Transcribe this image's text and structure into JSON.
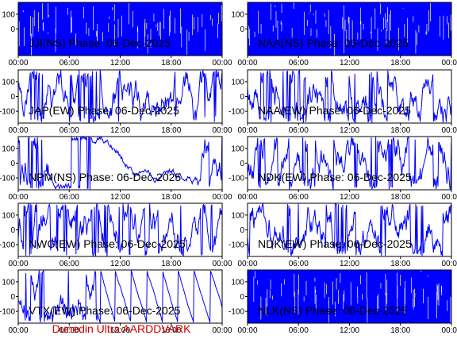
{
  "footer": "Dunedin Ultra AARDDVARK",
  "colors": {
    "trace": "#0000ff",
    "axis": "#000000",
    "footer": "#cc0000"
  },
  "chart_data": [
    {
      "type": "line",
      "title": "JJI(NS) Phase: 06-Dec-2025",
      "xlim": [
        "00:00",
        "24:00"
      ],
      "xticks": [
        "00:00",
        "06:00",
        "12:00",
        "18:00",
        "00:00"
      ],
      "ylim": [
        -180,
        180
      ],
      "yticks": [
        100,
        0
      ],
      "trace_style": "dense-saturated"
    },
    {
      "type": "line",
      "title": "NAA(NS) Phase: 06-Dec-2025",
      "xlim": [
        "00:00",
        "24:00"
      ],
      "xticks": [
        "00:00",
        "06:00",
        "12:00",
        "18:00",
        "00:00"
      ],
      "ylim": [
        -180,
        180
      ],
      "yticks": [
        100,
        0
      ],
      "trace_style": "dense-saturated"
    },
    {
      "type": "line",
      "title": "JAP(EW) Phase: 06-Dec-2025",
      "xlim": [
        "00:00",
        "24:00"
      ],
      "xticks": [
        "00:00",
        "06:00",
        "12:00",
        "18:00",
        "00:00"
      ],
      "ylim": [
        -180,
        180
      ],
      "yticks": [
        100,
        0,
        -100
      ],
      "trace_style": "wrapping-oscillation"
    },
    {
      "type": "line",
      "title": "NAA(EW) Phase: 06-Dec-2025",
      "xlim": [
        "00:00",
        "24:00"
      ],
      "xticks": [
        "00:00",
        "06:00",
        "12:00",
        "18:00",
        "00:00"
      ],
      "ylim": [
        -180,
        180
      ],
      "yticks": [
        100,
        0,
        -100
      ],
      "trace_style": "wrapping-oscillation"
    },
    {
      "type": "line",
      "title": "NPM(NS) Phase: 06-Dec-2025",
      "xlim": [
        "00:00",
        "24:00"
      ],
      "xticks": [
        "00:00",
        "06:00",
        "12:00",
        "18:00",
        "00:00"
      ],
      "ylim": [
        -180,
        180
      ],
      "yticks": [
        100,
        0,
        -100
      ],
      "trace_style": "drifting-sawtooth"
    },
    {
      "type": "line",
      "title": "NDK(EW) Phase: 06-Dec-2025",
      "xlim": [
        "00:00",
        "24:00"
      ],
      "xticks": [
        "00:00",
        "06:00",
        "12:00",
        "18:00",
        "00:00"
      ],
      "ylim": [
        -180,
        180
      ],
      "yticks": [
        100,
        0,
        -100
      ],
      "trace_style": "wrapping-oscillation"
    },
    {
      "type": "line",
      "title": "NWC(EW) Phase: 06-Dec-2025",
      "xlim": [
        "00:00",
        "24:00"
      ],
      "xticks": [
        "00:00",
        "06:00",
        "12:00",
        "18:00",
        "00:00"
      ],
      "ylim": [
        -180,
        180
      ],
      "yticks": [
        100,
        0,
        -100
      ],
      "trace_style": "wrapping-oscillation"
    },
    {
      "type": "line",
      "title": "NDK(EW) Phase: 06-Dec-2025",
      "xlim": [
        "00:00",
        "24:00"
      ],
      "xticks": [
        "00:00",
        "06:00",
        "12:00",
        "18:00",
        "00:00"
      ],
      "ylim": [
        -180,
        180
      ],
      "yticks": [
        100,
        0,
        -100
      ],
      "trace_style": "wrapping-oscillation"
    },
    {
      "type": "line",
      "title": "VTX(EW) Phase: 06-Dec-2025",
      "xlim": [
        "00:00",
        "24:00"
      ],
      "xticks": [
        "00:00",
        "06:00",
        "12:00",
        "18:00",
        "00:00"
      ],
      "ylim": [
        -180,
        180
      ],
      "yticks": [
        100,
        0,
        -100
      ],
      "trace_style": "sawtooth-ramps"
    },
    {
      "type": "line",
      "title": "NLK(NS) Phase: 06-Dec-2025",
      "xlim": [
        "00:00",
        "24:00"
      ],
      "xticks": [
        "00:00",
        "06:00",
        "12:00",
        "18:00",
        "00:00"
      ],
      "ylim": [
        -180,
        180
      ],
      "yticks": [
        100,
        0,
        -100
      ],
      "trace_style": "dense-saturated"
    }
  ]
}
